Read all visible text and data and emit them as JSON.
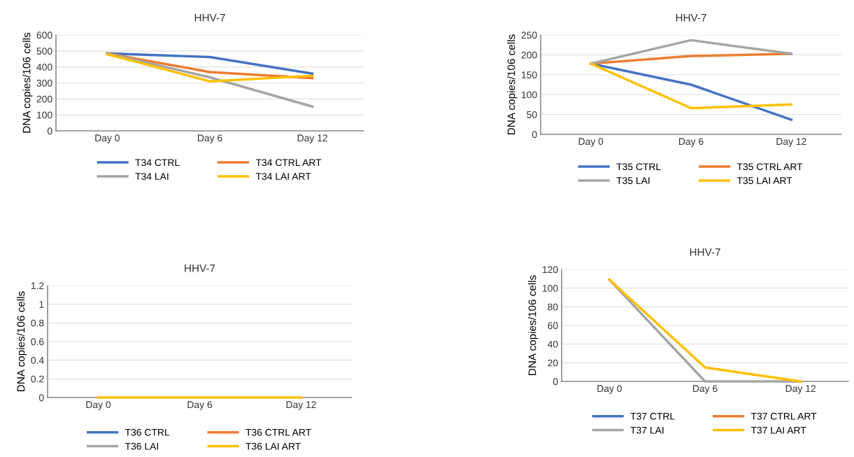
{
  "chart_data": [
    {
      "type": "line",
      "title": "HHV-7",
      "ylabel": "DNA copies/106 cells",
      "categories": [
        "Day 0",
        "Day 6",
        "Day 12"
      ],
      "ylim": [
        0,
        600
      ],
      "yticks": [
        0,
        100,
        200,
        300,
        400,
        500,
        600
      ],
      "grid": "y",
      "legend": "bottom",
      "marker": "none",
      "line_style": "solid",
      "series": [
        {
          "name": "T34 CTRL",
          "color": "#4472c4",
          "values": [
            485,
            462,
            358
          ]
        },
        {
          "name": "T34 CTRL ART",
          "color": "#ed7d31",
          "values": [
            485,
            368,
            330
          ]
        },
        {
          "name": "T34 LAI",
          "color": "#a5a5a5",
          "values": [
            485,
            335,
            152
          ]
        },
        {
          "name": "T34 LAI ART",
          "color": "#ffc000",
          "values": [
            480,
            310,
            345
          ]
        }
      ]
    },
    {
      "type": "line",
      "title": "HHV-7",
      "ylabel": "DNA copies/106 cells",
      "categories": [
        "Day 0",
        "Day 6",
        "Day 12"
      ],
      "ylim": [
        0,
        250
      ],
      "yticks": [
        0,
        50,
        100,
        150,
        200,
        250
      ],
      "grid": "y",
      "legend": "bottom",
      "marker": "none",
      "line_style": "solid",
      "series": [
        {
          "name": "T35 CTRL",
          "color": "#4472c4",
          "values": [
            178,
            125,
            37
          ]
        },
        {
          "name": "T35 CTRL ART",
          "color": "#ed7d31",
          "values": [
            178,
            197,
            203
          ]
        },
        {
          "name": "T35 LAI",
          "color": "#a5a5a5",
          "values": [
            178,
            237,
            203
          ]
        },
        {
          "name": "T35 LAI ART",
          "color": "#ffc000",
          "values": [
            178,
            66,
            75
          ]
        }
      ]
    },
    {
      "type": "line",
      "title": "HHV-7",
      "ylabel": "DNA copies/106 cells",
      "categories": [
        "Day 0",
        "Day 6",
        "Day 12"
      ],
      "ylim": [
        0,
        1.2
      ],
      "yticks": [
        0,
        0.2,
        0.4,
        0.6,
        0.8,
        1,
        1.2
      ],
      "grid": "y",
      "legend": "bottom",
      "marker": "none",
      "line_style": "solid",
      "series": [
        {
          "name": "T36 CTRL",
          "color": "#4472c4",
          "values": [
            null,
            null,
            null
          ]
        },
        {
          "name": "T36 CTRL ART",
          "color": "#ed7d31",
          "values": [
            null,
            null,
            null
          ]
        },
        {
          "name": "T36 LAI",
          "color": "#a5a5a5",
          "values": [
            null,
            null,
            null
          ]
        },
        {
          "name": "T36 LAI ART",
          "color": "#ffc000",
          "values": [
            0,
            0,
            0
          ]
        }
      ]
    },
    {
      "type": "line",
      "title": "HHV-7",
      "ylabel": "DNA copies/106 cells",
      "categories": [
        "Day 0",
        "Day 6",
        "Day 12"
      ],
      "ylim": [
        0,
        120
      ],
      "yticks": [
        0,
        20,
        40,
        60,
        80,
        100,
        120
      ],
      "grid": "y",
      "legend": "bottom",
      "marker": "none",
      "line_style": "solid",
      "series": [
        {
          "name": "T37 CTRL",
          "color": "#4472c4",
          "values": [
            null,
            null,
            null
          ]
        },
        {
          "name": "T37 CTRL ART",
          "color": "#ed7d31",
          "values": [
            null,
            null,
            null
          ]
        },
        {
          "name": "T37 LAI",
          "color": "#a5a5a5",
          "values": [
            109,
            0,
            0
          ]
        },
        {
          "name": "T37 LAI ART",
          "color": "#ffc000",
          "values": [
            109,
            15,
            0
          ]
        }
      ]
    }
  ]
}
